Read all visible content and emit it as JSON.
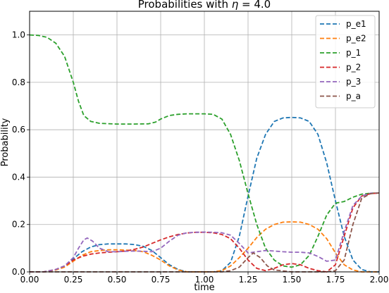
{
  "chart_data": {
    "type": "line",
    "title_prefix": "Probabilities with ",
    "title_symbol": "η",
    "title_suffix": " = 4.0",
    "xlabel": "time",
    "ylabel": "Probability",
    "xlim": [
      0.0,
      2.0
    ],
    "ylim": [
      0.0,
      1.1
    ],
    "xticks": [
      {
        "value": 0.0,
        "label": "0.00"
      },
      {
        "value": 0.25,
        "label": "0.25"
      },
      {
        "value": 0.5,
        "label": "0.50"
      },
      {
        "value": 0.75,
        "label": "0.75"
      },
      {
        "value": 1.0,
        "label": "1.00"
      },
      {
        "value": 1.25,
        "label": "1.25"
      },
      {
        "value": 1.5,
        "label": "1.50"
      },
      {
        "value": 1.75,
        "label": "1.75"
      },
      {
        "value": 2.0,
        "label": "2.00"
      }
    ],
    "yticks": [
      {
        "value": 0.0,
        "label": "0.0"
      },
      {
        "value": 0.2,
        "label": "0.2"
      },
      {
        "value": 0.4,
        "label": "0.4"
      },
      {
        "value": 0.6,
        "label": "0.6"
      },
      {
        "value": 0.8,
        "label": "0.8"
      },
      {
        "value": 1.0,
        "label": "1.0"
      }
    ],
    "grid": true,
    "legend_position": "top-right",
    "line_style": "dashed",
    "series": [
      {
        "name": "p_e1",
        "color": "#1f77b4",
        "x": [
          0.0,
          0.08,
          0.15,
          0.2,
          0.25,
          0.3,
          0.35,
          0.4,
          0.45,
          0.5,
          0.55,
          0.6,
          0.65,
          0.7,
          0.75,
          0.8,
          0.85,
          0.9,
          0.95,
          1.0,
          1.05,
          1.1,
          1.15,
          1.2,
          1.25,
          1.3,
          1.35,
          1.4,
          1.45,
          1.5,
          1.55,
          1.6,
          1.65,
          1.7,
          1.75,
          1.8,
          1.85,
          1.9,
          1.95,
          2.0
        ],
        "y": [
          0.0,
          0.0,
          0.01,
          0.025,
          0.055,
          0.085,
          0.105,
          0.115,
          0.118,
          0.118,
          0.118,
          0.115,
          0.108,
          0.09,
          0.06,
          0.03,
          0.01,
          0.0,
          0.0,
          0.0,
          0.0,
          0.005,
          0.04,
          0.15,
          0.32,
          0.48,
          0.58,
          0.635,
          0.65,
          0.652,
          0.65,
          0.635,
          0.58,
          0.46,
          0.3,
          0.15,
          0.05,
          0.01,
          0.0,
          0.0
        ]
      },
      {
        "name": "p_e2",
        "color": "#ff7f0e",
        "x": [
          0.0,
          0.08,
          0.15,
          0.2,
          0.25,
          0.3,
          0.35,
          0.4,
          0.45,
          0.5,
          0.55,
          0.6,
          0.65,
          0.7,
          0.75,
          0.8,
          0.85,
          0.9,
          0.95,
          1.0,
          1.05,
          1.1,
          1.15,
          1.2,
          1.25,
          1.3,
          1.35,
          1.4,
          1.45,
          1.5,
          1.55,
          1.6,
          1.65,
          1.7,
          1.75,
          1.8,
          1.85,
          1.9,
          1.95,
          2.0
        ],
        "y": [
          0.0,
          0.0,
          0.008,
          0.02,
          0.045,
          0.07,
          0.085,
          0.09,
          0.093,
          0.093,
          0.092,
          0.09,
          0.085,
          0.07,
          0.05,
          0.025,
          0.008,
          0.0,
          0.0,
          0.0,
          0.0,
          0.005,
          0.025,
          0.06,
          0.1,
          0.145,
          0.18,
          0.2,
          0.21,
          0.211,
          0.21,
          0.2,
          0.18,
          0.14,
          0.08,
          0.03,
          0.008,
          0.0,
          0.0,
          0.0
        ]
      },
      {
        "name": "p_1",
        "color": "#2ca02c",
        "x": [
          0.0,
          0.05,
          0.1,
          0.15,
          0.2,
          0.25,
          0.28,
          0.31,
          0.35,
          0.4,
          0.5,
          0.6,
          0.68,
          0.72,
          0.75,
          0.8,
          0.85,
          0.9,
          1.0,
          1.05,
          1.1,
          1.15,
          1.2,
          1.25,
          1.3,
          1.35,
          1.4,
          1.45,
          1.5,
          1.55,
          1.6,
          1.65,
          1.7,
          1.75,
          1.8,
          1.85,
          1.9,
          1.95,
          2.0
        ],
        "y": [
          1.0,
          0.998,
          0.99,
          0.965,
          0.91,
          0.8,
          0.72,
          0.66,
          0.635,
          0.627,
          0.624,
          0.624,
          0.625,
          0.632,
          0.645,
          0.66,
          0.665,
          0.667,
          0.667,
          0.665,
          0.645,
          0.58,
          0.47,
          0.33,
          0.2,
          0.1,
          0.05,
          0.025,
          0.02,
          0.03,
          0.07,
          0.15,
          0.24,
          0.29,
          0.297,
          0.315,
          0.328,
          0.332,
          0.333
        ]
      },
      {
        "name": "p_2",
        "color": "#d62728",
        "x": [
          0.0,
          0.08,
          0.15,
          0.2,
          0.25,
          0.3,
          0.35,
          0.4,
          0.45,
          0.5,
          0.55,
          0.6,
          0.65,
          0.7,
          0.75,
          0.8,
          0.85,
          0.9,
          0.95,
          1.0,
          1.05,
          1.1,
          1.15,
          1.2,
          1.25,
          1.3,
          1.35,
          1.4,
          1.45,
          1.5,
          1.55,
          1.6,
          1.65,
          1.7,
          1.75,
          1.8,
          1.85,
          1.9,
          1.95,
          2.0
        ],
        "y": [
          0.0,
          0.0,
          0.01,
          0.025,
          0.05,
          0.065,
          0.075,
          0.08,
          0.083,
          0.085,
          0.088,
          0.095,
          0.105,
          0.12,
          0.135,
          0.148,
          0.158,
          0.164,
          0.167,
          0.167,
          0.165,
          0.158,
          0.14,
          0.1,
          0.05,
          0.015,
          0.005,
          0.015,
          0.03,
          0.035,
          0.03,
          0.015,
          0.005,
          0.0,
          0.03,
          0.15,
          0.27,
          0.32,
          0.33,
          0.333
        ]
      },
      {
        "name": "p_3",
        "color": "#9467bd",
        "x": [
          0.0,
          0.08,
          0.15,
          0.2,
          0.25,
          0.28,
          0.31,
          0.33,
          0.36,
          0.4,
          0.45,
          0.5,
          0.55,
          0.6,
          0.65,
          0.7,
          0.75,
          0.8,
          0.85,
          0.9,
          0.95,
          1.0,
          1.05,
          1.1,
          1.15,
          1.2,
          1.25,
          1.3,
          1.35,
          1.4,
          1.45,
          1.5,
          1.55,
          1.6,
          1.65,
          1.7,
          1.75,
          1.8,
          1.85,
          1.9,
          1.95,
          2.0
        ],
        "y": [
          0.0,
          0.0,
          0.01,
          0.025,
          0.06,
          0.1,
          0.135,
          0.143,
          0.13,
          0.1,
          0.085,
          0.085,
          0.087,
          0.088,
          0.087,
          0.085,
          0.1,
          0.13,
          0.155,
          0.165,
          0.167,
          0.168,
          0.167,
          0.165,
          0.155,
          0.12,
          0.08,
          0.085,
          0.09,
          0.088,
          0.085,
          0.083,
          0.083,
          0.08,
          0.065,
          0.045,
          0.05,
          0.17,
          0.28,
          0.32,
          0.332,
          0.333
        ]
      },
      {
        "name": "p_a",
        "color": "#8c564b",
        "x": [
          0.0,
          0.2,
          0.4,
          0.6,
          0.8,
          1.0,
          1.1,
          1.15,
          1.2,
          1.25,
          1.28,
          1.32,
          1.36,
          1.4,
          1.5,
          1.6,
          1.7,
          1.75,
          1.8,
          1.85,
          1.9,
          1.95,
          2.0
        ],
        "y": [
          0.0,
          0.0,
          0.0,
          0.0,
          0.0,
          0.0,
          0.0,
          0.005,
          0.02,
          0.06,
          0.08,
          0.06,
          0.025,
          0.008,
          0.0,
          0.0,
          0.0,
          0.005,
          0.05,
          0.2,
          0.31,
          0.33,
          0.333
        ]
      }
    ]
  }
}
